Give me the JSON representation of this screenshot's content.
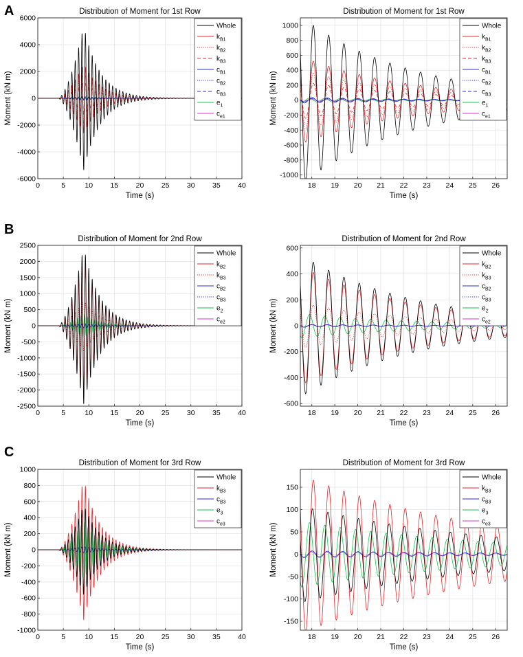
{
  "figure": {
    "panel_labels": [
      "A",
      "B",
      "C"
    ]
  },
  "chart_data": [
    {
      "type": "line",
      "panel": "A",
      "title": "Distribution of Moment for 1st Row",
      "xlabel": "Time (s)",
      "ylabel": "Moment (kN m)",
      "xlim": [
        0,
        40
      ],
      "ylim": [
        -6000,
        6000
      ],
      "xticks": [
        "0",
        "5",
        "10",
        "15",
        "20",
        "25",
        "30",
        "35",
        "40"
      ],
      "yticks": [
        "-6000",
        "-4000",
        "-2000",
        "0",
        "2000",
        "4000",
        "6000"
      ],
      "grid": true,
      "legend_position": "top-right",
      "signal": {
        "onset": 4,
        "peak_time": 9,
        "freq": 1.5
      },
      "series": [
        {
          "name": "Whole",
          "base": "k",
          "sub": "",
          "color": "#000000",
          "dash": "solid",
          "peak": 5400,
          "lag": 0
        },
        {
          "name": "kB1",
          "base": "k",
          "sub": "B1",
          "color": "#e8262a",
          "dash": "solid",
          "peak": 2600,
          "lag": 0
        },
        {
          "name": "kB2",
          "base": "k",
          "sub": "B2",
          "color": "#e8262a",
          "dash": "dotted",
          "peak": 1900,
          "lag": 0
        },
        {
          "name": "kB3",
          "base": "k",
          "sub": "B3",
          "color": "#e8262a",
          "dash": "dashed",
          "peak": 1200,
          "lag": 0
        },
        {
          "name": "cB1",
          "base": "c",
          "sub": "B1",
          "color": "#2b2bd9",
          "dash": "solid",
          "peak": 140,
          "lag": 0.16
        },
        {
          "name": "cB2",
          "base": "c",
          "sub": "B2",
          "color": "#2b2bd9",
          "dash": "dotted",
          "peak": 100,
          "lag": 0.16
        },
        {
          "name": "cB3",
          "base": "c",
          "sub": "B3",
          "color": "#2b2bd9",
          "dash": "dashed",
          "peak": 80,
          "lag": 0.16
        },
        {
          "name": "e1",
          "base": "e",
          "sub": "1",
          "color": "#10c84a",
          "dash": "solid",
          "peak": 60,
          "lag": 0.5
        },
        {
          "name": "ce1",
          "base": "c",
          "sub": "e1",
          "color": "#e030d8",
          "dash": "solid",
          "peak": 30,
          "lag": 0.25
        }
      ]
    },
    {
      "type": "line",
      "panel": "A-zoom",
      "title": "Distribution of Moment for 1st Row",
      "xlabel": "Time (s)",
      "ylabel": "Moment (kN m)",
      "xlim": [
        17.5,
        26.5
      ],
      "ylim": [
        -1050,
        1100
      ],
      "xticks": [
        "18",
        "19",
        "20",
        "21",
        "22",
        "23",
        "24",
        "25",
        "26"
      ],
      "yticks": [
        "-1000",
        "-800",
        "-600",
        "-400",
        "-200",
        "0",
        "200",
        "400",
        "600",
        "800",
        "1000"
      ],
      "grid": true,
      "legend_position": "top-right",
      "signal": {
        "start": 17.4,
        "freq": 1.5,
        "decay": 0.21
      },
      "series": [
        {
          "name": "Whole",
          "base": "k",
          "sub": "",
          "color": "#000000",
          "dash": "solid",
          "peak": 1150,
          "lag": 0
        },
        {
          "name": "kB1",
          "base": "k",
          "sub": "B1",
          "color": "#e8262a",
          "dash": "solid",
          "peak": 600,
          "lag": 0
        },
        {
          "name": "kB2",
          "base": "k",
          "sub": "B2",
          "color": "#e8262a",
          "dash": "dotted",
          "peak": 420,
          "lag": 0
        },
        {
          "name": "kB3",
          "base": "k",
          "sub": "B3",
          "color": "#e8262a",
          "dash": "dashed",
          "peak": 260,
          "lag": 0
        },
        {
          "name": "cB1",
          "base": "c",
          "sub": "B1",
          "color": "#2b2bd9",
          "dash": "solid",
          "peak": 40,
          "lag": 0.16
        },
        {
          "name": "cB2",
          "base": "c",
          "sub": "B2",
          "color": "#2b2bd9",
          "dash": "dotted",
          "peak": 30,
          "lag": 0.16
        },
        {
          "name": "cB3",
          "base": "c",
          "sub": "B3",
          "color": "#2b2bd9",
          "dash": "dashed",
          "peak": 25,
          "lag": 0.16
        },
        {
          "name": "e1",
          "base": "e",
          "sub": "1",
          "color": "#10c84a",
          "dash": "solid",
          "peak": 30,
          "lag": 0.5
        },
        {
          "name": "ce1",
          "base": "c",
          "sub": "e1",
          "color": "#e030d8",
          "dash": "solid",
          "peak": 15,
          "lag": 0.25
        }
      ]
    },
    {
      "type": "line",
      "panel": "B",
      "title": "Distribution of Moment for 2nd Row",
      "xlabel": "Time (s)",
      "ylabel": "Moment (kN m)",
      "xlim": [
        0,
        40
      ],
      "ylim": [
        -2500,
        2500
      ],
      "xticks": [
        "0",
        "5",
        "10",
        "15",
        "20",
        "25",
        "30",
        "35",
        "40"
      ],
      "yticks": [
        "-2500",
        "-2000",
        "-1500",
        "-1000",
        "-500",
        "0",
        "500",
        "1000",
        "1500",
        "2000",
        "2500"
      ],
      "grid": true,
      "legend_position": "top-right",
      "signal": {
        "onset": 4,
        "peak_time": 9,
        "freq": 1.5
      },
      "series": [
        {
          "name": "Whole",
          "base": "k",
          "sub": "",
          "color": "#000000",
          "dash": "solid",
          "peak": 2450,
          "lag": 0
        },
        {
          "name": "kB2",
          "base": "k",
          "sub": "B2",
          "color": "#e8262a",
          "dash": "solid",
          "peak": 2050,
          "lag": 0
        },
        {
          "name": "kB3",
          "base": "k",
          "sub": "B3",
          "color": "#e8262a",
          "dash": "dotted",
          "peak": 800,
          "lag": 0
        },
        {
          "name": "cB2",
          "base": "c",
          "sub": "B2",
          "color": "#2b2bd9",
          "dash": "solid",
          "peak": 70,
          "lag": 0.16
        },
        {
          "name": "cB3",
          "base": "c",
          "sub": "B3",
          "color": "#2b2bd9",
          "dash": "dotted",
          "peak": 50,
          "lag": 0.16
        },
        {
          "name": "e2",
          "base": "e",
          "sub": "2",
          "color": "#10c84a",
          "dash": "solid",
          "peak": 380,
          "lag": 0.5
        },
        {
          "name": "ce2",
          "base": "c",
          "sub": "e2",
          "color": "#e030d8",
          "dash": "solid",
          "peak": 40,
          "lag": 0.25
        }
      ]
    },
    {
      "type": "line",
      "panel": "B-zoom",
      "title": "Distribution of Moment for 2nd Row",
      "xlabel": "Time (s)",
      "ylabel": "Moment (kN m)",
      "xlim": [
        17.5,
        26.5
      ],
      "ylim": [
        -620,
        620
      ],
      "xticks": [
        "18",
        "19",
        "20",
        "21",
        "22",
        "23",
        "24",
        "25",
        "26"
      ],
      "yticks": [
        "-600",
        "-400",
        "-200",
        "0",
        "200",
        "400",
        "600"
      ],
      "grid": true,
      "legend_position": "top-right",
      "signal": {
        "start": 17.4,
        "freq": 1.5,
        "decay": 0.2
      },
      "series": [
        {
          "name": "Whole",
          "base": "k",
          "sub": "",
          "color": "#000000",
          "dash": "solid",
          "peak": 560,
          "lag": 0
        },
        {
          "name": "kB2",
          "base": "k",
          "sub": "B2",
          "color": "#e8262a",
          "dash": "solid",
          "peak": 470,
          "lag": 0
        },
        {
          "name": "kB3",
          "base": "k",
          "sub": "B3",
          "color": "#e8262a",
          "dash": "dotted",
          "peak": 180,
          "lag": 0
        },
        {
          "name": "cB2",
          "base": "c",
          "sub": "B2",
          "color": "#2b2bd9",
          "dash": "solid",
          "peak": 12,
          "lag": 0.16
        },
        {
          "name": "cB3",
          "base": "c",
          "sub": "B3",
          "color": "#2b2bd9",
          "dash": "dotted",
          "peak": 9,
          "lag": 0.16
        },
        {
          "name": "e2",
          "base": "e",
          "sub": "2",
          "color": "#10c84a",
          "dash": "solid",
          "peak": 95,
          "lag": 0.5
        },
        {
          "name": "ce2",
          "base": "c",
          "sub": "e2",
          "color": "#e030d8",
          "dash": "solid",
          "peak": 10,
          "lag": 0.25
        }
      ]
    },
    {
      "type": "line",
      "panel": "C",
      "title": "Distribution of Moment for 3rd Row",
      "xlabel": "Time (s)",
      "ylabel": "Moment (kN m)",
      "xlim": [
        0,
        40
      ],
      "ylim": [
        -1000,
        1000
      ],
      "xticks": [
        "0",
        "5",
        "10",
        "15",
        "20",
        "25",
        "30",
        "35",
        "40"
      ],
      "yticks": [
        "-1000",
        "-800",
        "-600",
        "-400",
        "-200",
        "0",
        "200",
        "400",
        "600",
        "800",
        "1000"
      ],
      "grid": true,
      "legend_position": "top-right",
      "signal": {
        "onset": 4,
        "peak_time": 9,
        "freq": 1.5
      },
      "series": [
        {
          "name": "Whole",
          "base": "k",
          "sub": "",
          "color": "#000000",
          "dash": "solid",
          "peak": 560,
          "lag": 0.1
        },
        {
          "name": "kB3",
          "base": "k",
          "sub": "B3",
          "color": "#e8262a",
          "dash": "solid",
          "peak": 880,
          "lag": 0
        },
        {
          "name": "cB3",
          "base": "c",
          "sub": "B3",
          "color": "#2b2bd9",
          "dash": "solid",
          "peak": 40,
          "lag": 0.16
        },
        {
          "name": "e3",
          "base": "e",
          "sub": "3",
          "color": "#10c84a",
          "dash": "solid",
          "peak": 360,
          "lag": 0.5
        },
        {
          "name": "ce3",
          "base": "c",
          "sub": "e3",
          "color": "#e030d8",
          "dash": "solid",
          "peak": 30,
          "lag": 0.25
        }
      ]
    },
    {
      "type": "line",
      "panel": "C-zoom",
      "title": "Distribution of Moment for 3rd Row",
      "xlabel": "Time (s)",
      "ylabel": "Moment (kN m)",
      "xlim": [
        17.5,
        26.5
      ],
      "ylim": [
        -170,
        190
      ],
      "xticks": [
        "18",
        "19",
        "20",
        "21",
        "22",
        "23",
        "24",
        "25",
        "26"
      ],
      "yticks": [
        "-150",
        "-100",
        "-50",
        "0",
        "50",
        "100",
        "150"
      ],
      "grid": true,
      "legend_position": "top-right",
      "signal": {
        "start": 17.4,
        "freq": 1.5,
        "decay": 0.12
      },
      "series": [
        {
          "name": "Whole",
          "base": "k",
          "sub": "",
          "color": "#000000",
          "dash": "solid",
          "peak": 110,
          "lag": 0.1
        },
        {
          "name": "kB3",
          "base": "k",
          "sub": "B3",
          "color": "#e8262a",
          "dash": "solid",
          "peak": 180,
          "lag": 0
        },
        {
          "name": "cB3",
          "base": "c",
          "sub": "B3",
          "color": "#2b2bd9",
          "dash": "solid",
          "peak": 8,
          "lag": 0.16
        },
        {
          "name": "e3",
          "base": "e",
          "sub": "3",
          "color": "#10c84a",
          "dash": "solid",
          "peak": 75,
          "lag": 0.5
        },
        {
          "name": "ce3",
          "base": "c",
          "sub": "e3",
          "color": "#e030d8",
          "dash": "solid",
          "peak": 6,
          "lag": 0.25
        }
      ]
    }
  ]
}
